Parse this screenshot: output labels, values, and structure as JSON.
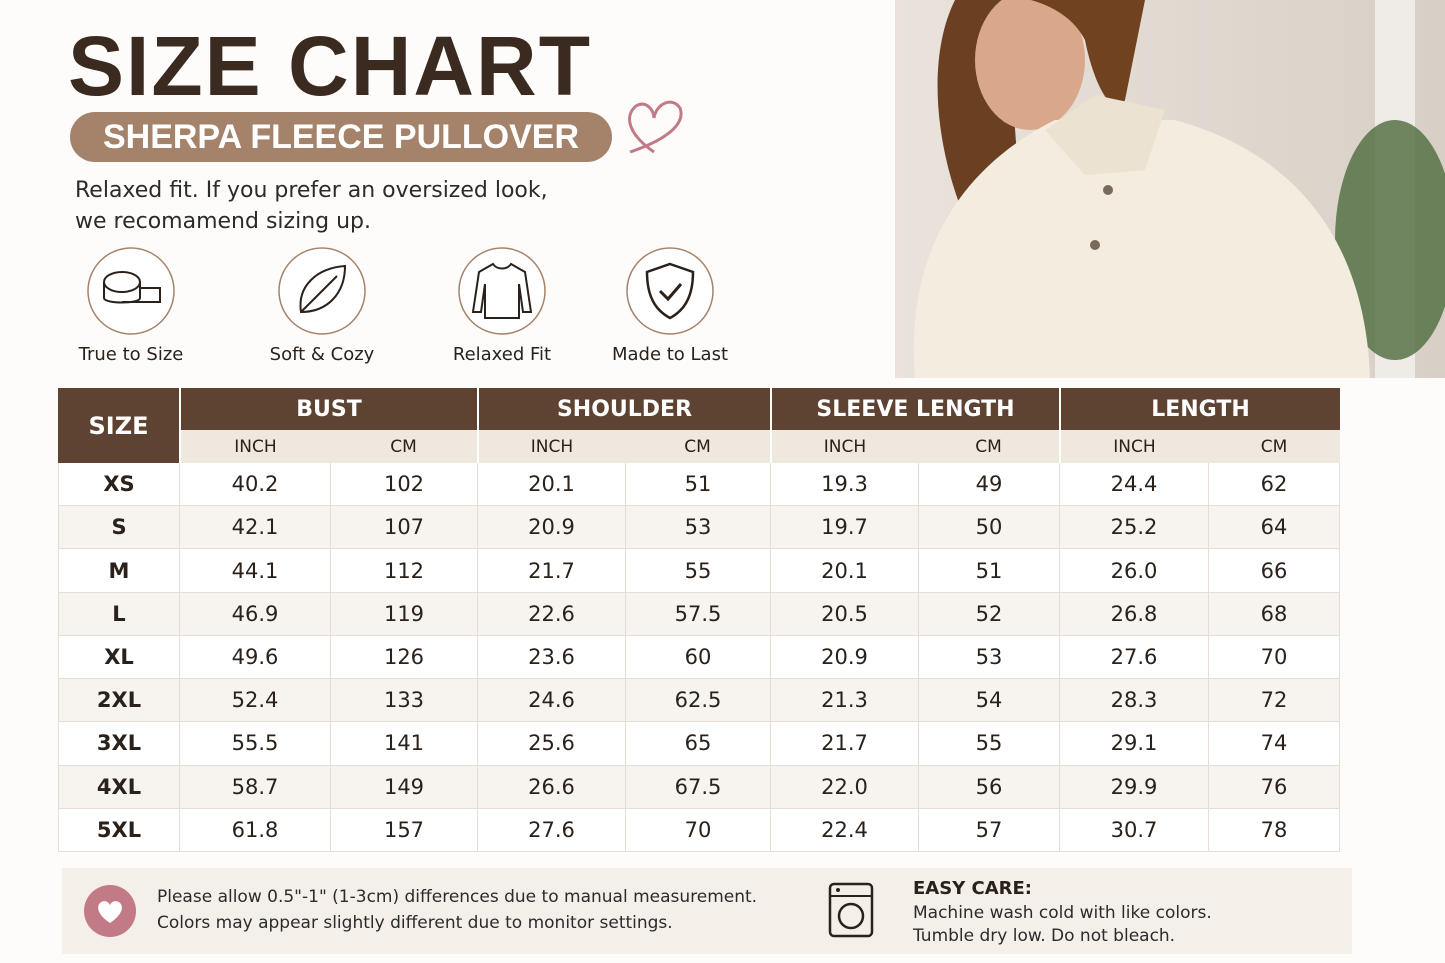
{
  "header": {
    "title": "SIZE CHART",
    "subtitle": "SHERPA FLEECE PULLOVER",
    "description": [
      "Relaxed fit. If you prefer an oversized look,",
      "we recomamend sizing up."
    ]
  },
  "features": [
    {
      "label": "True to Size"
    },
    {
      "label": "Soft & Cozy"
    },
    {
      "label": "Relaxed Fit"
    },
    {
      "label": "Made to Last"
    }
  ],
  "table": {
    "size_header": "SIZE",
    "groups": [
      {
        "name": "BUST",
        "units": [
          "INCH",
          "CM"
        ]
      },
      {
        "name": "SHOULDER",
        "units": [
          "INCH",
          "CM"
        ]
      },
      {
        "name": "SLEEVE LENGTH",
        "units": [
          "INCH",
          "CM"
        ]
      },
      {
        "name": "LENGTH",
        "units": [
          "INCH",
          "CM"
        ]
      }
    ],
    "rows": [
      [
        "XS",
        "40.2",
        "102",
        "20.1",
        "51",
        "19.3",
        "49",
        "24.4",
        "62"
      ],
      [
        "S",
        "42.1",
        "107",
        "20.9",
        "53",
        "19.7",
        "50",
        "25.2",
        "64"
      ],
      [
        "M",
        "44.1",
        "112",
        "21.7",
        "55",
        "20.1",
        "51",
        "26.0",
        "66"
      ],
      [
        "L",
        "46.9",
        "119",
        "22.6",
        "57.5",
        "20.5",
        "52",
        "26.8",
        "68"
      ],
      [
        "XL",
        "49.6",
        "126",
        "23.6",
        "60",
        "20.9",
        "53",
        "27.6",
        "70"
      ],
      [
        "2XL",
        "52.4",
        "133",
        "24.6",
        "62.5",
        "21.3",
        "54",
        "28.3",
        "72"
      ],
      [
        "3XL",
        "55.5",
        "141",
        "25.6",
        "65",
        "21.7",
        "55",
        "29.1",
        "74"
      ],
      [
        "4XL",
        "58.7",
        "149",
        "26.6",
        "67.5",
        "22.0",
        "56",
        "29.9",
        "76"
      ],
      [
        "5XL",
        "61.8",
        "157",
        "27.6",
        "70",
        "22.4",
        "57",
        "30.7",
        "78"
      ]
    ]
  },
  "footer": {
    "notes": [
      "Please allow 0.5\"-1\" (1-3cm) differences due to manual measurement.",
      "Colors may appear slightly different due to monitor settings."
    ],
    "care_title": "EASY CARE:",
    "care_lines": [
      "Machine wash cold with like colors.",
      "Tumble dry low. Do not bleach."
    ]
  }
}
